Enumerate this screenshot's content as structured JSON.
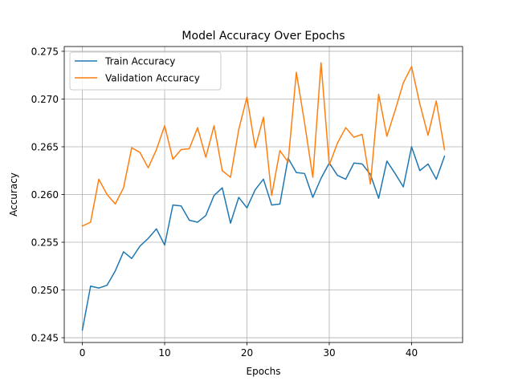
{
  "chart_data": {
    "type": "line",
    "title": "Model Accuracy Over Epochs",
    "xlabel": "Epochs",
    "ylabel": "Accuracy",
    "xlim": [
      -2.2,
      46.2
    ],
    "ylim": [
      0.2445,
      0.2755
    ],
    "xticks": [
      0,
      10,
      20,
      30,
      40
    ],
    "yticks": [
      0.245,
      0.25,
      0.255,
      0.26,
      0.265,
      0.27,
      0.275
    ],
    "xtick_labels": [
      "0",
      "10",
      "20",
      "30",
      "40"
    ],
    "ytick_labels": [
      "0.245",
      "0.250",
      "0.255",
      "0.260",
      "0.265",
      "0.270",
      "0.275"
    ],
    "grid": true,
    "legend_position": "upper-left",
    "x": [
      0,
      1,
      2,
      3,
      4,
      5,
      6,
      7,
      8,
      9,
      10,
      11,
      12,
      13,
      14,
      15,
      16,
      17,
      18,
      19,
      20,
      21,
      22,
      23,
      24,
      25,
      26,
      27,
      28,
      29,
      30,
      31,
      32,
      33,
      34,
      35,
      36,
      37,
      38,
      39,
      40,
      41,
      42,
      43,
      44
    ],
    "series": [
      {
        "name": "Train Accuracy",
        "color": "#1f77b4",
        "values": [
          0.2458,
          0.2504,
          0.2502,
          0.2505,
          0.252,
          0.254,
          0.2533,
          0.2546,
          0.2554,
          0.2564,
          0.2547,
          0.2589,
          0.2588,
          0.2573,
          0.2571,
          0.2578,
          0.2599,
          0.2607,
          0.257,
          0.2597,
          0.2586,
          0.2605,
          0.2616,
          0.2589,
          0.259,
          0.2638,
          0.2623,
          0.2622,
          0.2597,
          0.2617,
          0.2633,
          0.262,
          0.2616,
          0.2633,
          0.2632,
          0.2621,
          0.2596,
          0.2635,
          0.2622,
          0.2608,
          0.265,
          0.2625,
          0.2632,
          0.2616,
          0.264
        ]
      },
      {
        "name": "Validation Accuracy",
        "color": "#ff7f0e",
        "values": [
          0.2567,
          0.2571,
          0.2616,
          0.26,
          0.259,
          0.2607,
          0.2649,
          0.2644,
          0.2628,
          0.2647,
          0.2672,
          0.2637,
          0.2647,
          0.2648,
          0.267,
          0.2639,
          0.2672,
          0.2625,
          0.2618,
          0.2668,
          0.2702,
          0.2649,
          0.2681,
          0.2599,
          0.2646,
          0.2634,
          0.2728,
          0.2675,
          0.2618,
          0.2738,
          0.2631,
          0.2654,
          0.267,
          0.266,
          0.2663,
          0.2611,
          0.2705,
          0.2661,
          0.2688,
          0.2717,
          0.2734,
          0.2695,
          0.2662,
          0.2698,
          0.2647
        ]
      }
    ]
  }
}
